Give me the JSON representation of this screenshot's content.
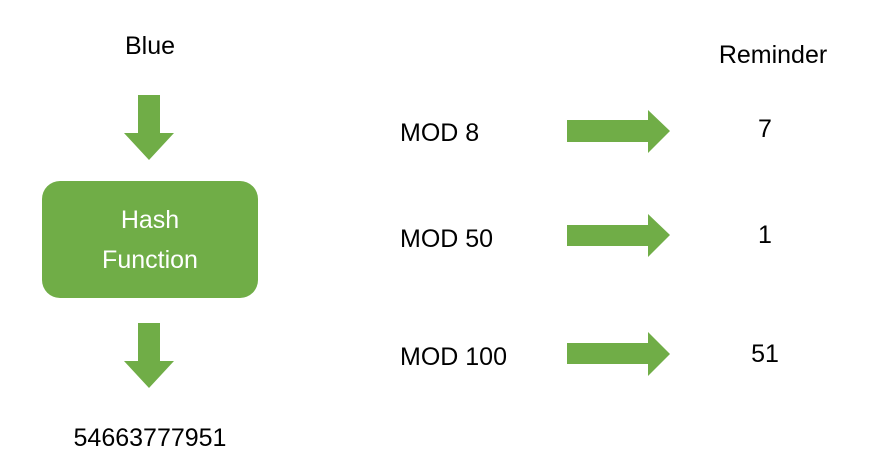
{
  "colors": {
    "green": "#70ad47",
    "text": "#000000"
  },
  "input_label": "Blue",
  "hash_box": {
    "line1": "Hash",
    "line2": "Function"
  },
  "hash_output": "54663777951",
  "reminder_header": "Reminder",
  "mod_rows": [
    {
      "label": "MOD 8",
      "remainder": "7"
    },
    {
      "label": "MOD 50",
      "remainder": "1"
    },
    {
      "label": "MOD 100",
      "remainder": "51"
    }
  ]
}
